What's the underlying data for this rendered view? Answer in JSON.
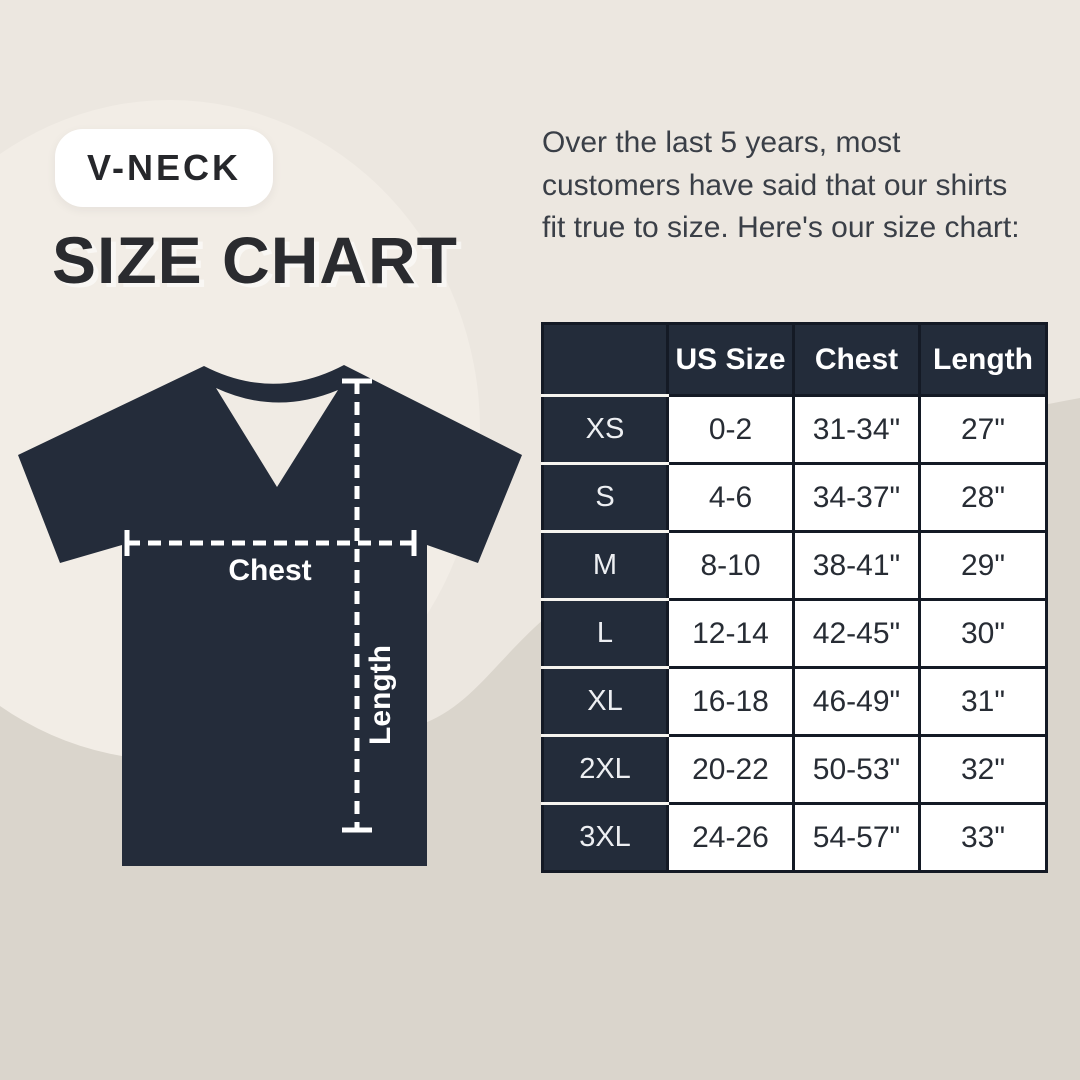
{
  "badge": {
    "label": "V-NECK"
  },
  "title": "SIZE CHART",
  "intro": "Over the last 5 years, most customers have said that our shirts fit true to size. Here's our size chart:",
  "diagram": {
    "chest_label": "Chest",
    "length_label": "Length"
  },
  "table": {
    "headers": [
      "",
      "US Size",
      "Chest",
      "Length"
    ],
    "rows": [
      {
        "size": "XS",
        "us": "0-2",
        "chest": "31-34\"",
        "length": "27\""
      },
      {
        "size": "S",
        "us": "4-6",
        "chest": "34-37\"",
        "length": "28\""
      },
      {
        "size": "M",
        "us": "8-10",
        "chest": "38-41\"",
        "length": "29\""
      },
      {
        "size": "L",
        "us": "12-14",
        "chest": "42-45\"",
        "length": "30\""
      },
      {
        "size": "XL",
        "us": "16-18",
        "chest": "46-49\"",
        "length": "31\""
      },
      {
        "size": "2XL",
        "us": "20-22",
        "chest": "50-53\"",
        "length": "32\""
      },
      {
        "size": "3XL",
        "us": "24-26",
        "chest": "54-57\"",
        "length": "33\""
      }
    ]
  },
  "colors": {
    "background": "#ECE7E0",
    "background_circle": "#F2EDE6",
    "background_wave": "#DAD5CC",
    "navy": "#232C3A",
    "grid_line": "#141A25",
    "white": "#FFFFFF",
    "heading_text": "#2A2B2F",
    "body_text": "#3A3F47"
  }
}
